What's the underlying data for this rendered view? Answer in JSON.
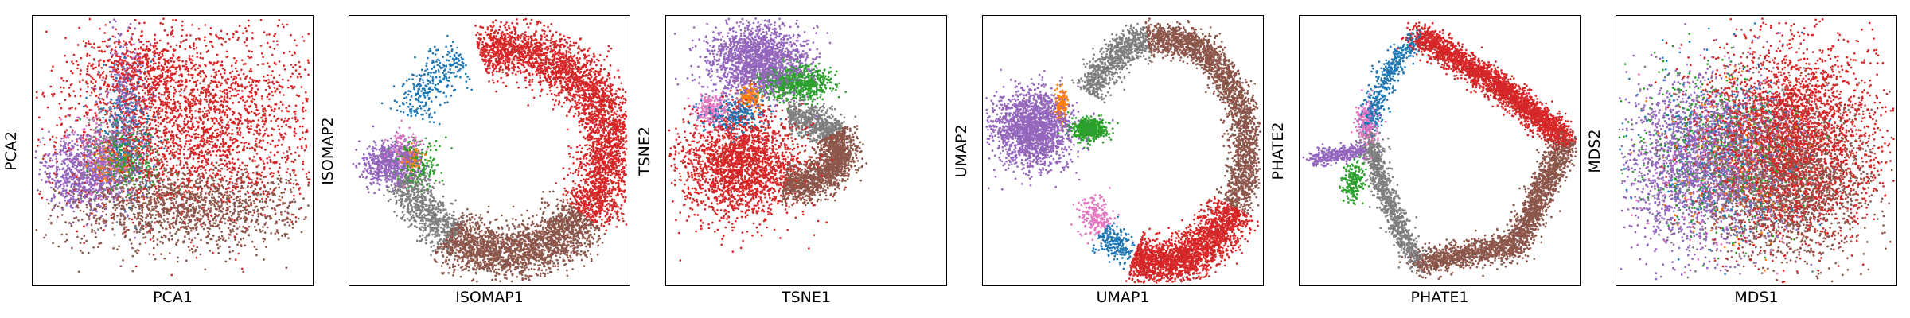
{
  "figure": {
    "palette": {
      "purple": "#9467bd",
      "red": "#d62728",
      "brown": "#8c564b",
      "gray": "#7f7f7f",
      "green": "#2ca02c",
      "blue": "#1f77b4",
      "orange": "#ff7f0e",
      "pink": "#e377c2"
    },
    "marker": "dot"
  },
  "chart_data": [
    {
      "type": "scatter",
      "title": "",
      "xlabel": "PCA1",
      "ylabel": "PCA2",
      "xticks": [],
      "yticks": [],
      "grid": false,
      "legend": "none",
      "clusters": [
        {
          "color": "#d62728",
          "count": 2600,
          "center": [
            0.58,
            0.4
          ],
          "spread": [
            0.23,
            0.17
          ],
          "shape": "blob"
        },
        {
          "color": "#d62728",
          "count": 500,
          "center": [
            0.38,
            0.2
          ],
          "spread": [
            0.1,
            0.07
          ],
          "shape": "blob"
        },
        {
          "color": "#8c564b",
          "count": 1500,
          "center": [
            0.56,
            0.71
          ],
          "spread": [
            0.22,
            0.08
          ],
          "shape": "blob"
        },
        {
          "color": "#9467bd",
          "count": 900,
          "center": [
            0.19,
            0.58
          ],
          "spread": [
            0.08,
            0.07
          ],
          "shape": "blob"
        },
        {
          "color": "#9467bd",
          "count": 300,
          "center": [
            0.33,
            0.32
          ],
          "spread": [
            0.04,
            0.14
          ],
          "shape": "blob"
        },
        {
          "color": "#2ca02c",
          "count": 250,
          "center": [
            0.33,
            0.54
          ],
          "spread": [
            0.06,
            0.06
          ],
          "shape": "blob"
        },
        {
          "color": "#7f7f7f",
          "count": 350,
          "center": [
            0.3,
            0.5
          ],
          "spread": [
            0.07,
            0.1
          ],
          "shape": "blob"
        },
        {
          "color": "#1f77b4",
          "count": 250,
          "center": [
            0.33,
            0.42
          ],
          "spread": [
            0.05,
            0.12
          ],
          "shape": "blob"
        },
        {
          "color": "#ff7f0e",
          "count": 100,
          "center": [
            0.28,
            0.55
          ],
          "spread": [
            0.04,
            0.04
          ],
          "shape": "blob"
        },
        {
          "color": "#e377c2",
          "count": 120,
          "center": [
            0.24,
            0.5
          ],
          "spread": [
            0.05,
            0.07
          ],
          "shape": "blob"
        }
      ]
    },
    {
      "type": "scatter",
      "title": "",
      "xlabel": "ISOMAP1",
      "ylabel": "ISOMAP2",
      "xticks": [],
      "yticks": [],
      "grid": false,
      "legend": "none",
      "clusters": [
        {
          "color": "#d62728",
          "count": 3300,
          "center": [
            0.56,
            0.5
          ],
          "radius": [
            0.37,
            0.38
          ],
          "arc": [
            -105,
            40
          ],
          "width": 0.05,
          "shape": "ring"
        },
        {
          "color": "#8c564b",
          "count": 2200,
          "center": [
            0.56,
            0.5
          ],
          "radius": [
            0.37,
            0.38
          ],
          "arc": [
            40,
            125
          ],
          "width": 0.05,
          "shape": "ring"
        },
        {
          "color": "#7f7f7f",
          "count": 700,
          "center": [
            0.56,
            0.5
          ],
          "radius": [
            0.37,
            0.38
          ],
          "arc": [
            120,
            165
          ],
          "width": 0.04,
          "shape": "ring"
        },
        {
          "color": "#9467bd",
          "count": 700,
          "center": [
            0.15,
            0.55
          ],
          "spread": [
            0.05,
            0.04
          ],
          "shape": "blob"
        },
        {
          "color": "#2ca02c",
          "count": 200,
          "center": [
            0.24,
            0.55
          ],
          "spread": [
            0.04,
            0.04
          ],
          "shape": "blob"
        },
        {
          "color": "#ff7f0e",
          "count": 100,
          "center": [
            0.22,
            0.53
          ],
          "spread": [
            0.02,
            0.02
          ],
          "shape": "blob"
        },
        {
          "color": "#1f77b4",
          "count": 300,
          "center": [
            0.56,
            0.5
          ],
          "radius": [
            0.37,
            0.38
          ],
          "arc": [
            -160,
            -115
          ],
          "width": 0.04,
          "shape": "ring"
        },
        {
          "color": "#e377c2",
          "count": 100,
          "center": [
            0.2,
            0.5
          ],
          "spread": [
            0.03,
            0.04
          ],
          "shape": "blob"
        }
      ]
    },
    {
      "type": "scatter",
      "title": "",
      "xlabel": "TSNE1",
      "ylabel": "TSNE2",
      "xticks": [],
      "yticks": [],
      "grid": false,
      "legend": "none",
      "clusters": [
        {
          "color": "#9467bd",
          "count": 1800,
          "center": [
            0.33,
            0.17
          ],
          "spread": [
            0.09,
            0.07
          ],
          "shape": "blob"
        },
        {
          "color": "#2ca02c",
          "count": 700,
          "center": [
            0.47,
            0.25
          ],
          "spread": [
            0.06,
            0.03
          ],
          "shape": "blob"
        },
        {
          "color": "#d62728",
          "count": 2200,
          "center": [
            0.27,
            0.55
          ],
          "spread": [
            0.11,
            0.1
          ],
          "shape": "blob"
        },
        {
          "color": "#8c564b",
          "count": 1500,
          "center": [
            0.45,
            0.5
          ],
          "radius": [
            0.17,
            0.13
          ],
          "arc": [
            -30,
            100
          ],
          "width": 0.035,
          "shape": "ring"
        },
        {
          "color": "#7f7f7f",
          "count": 600,
          "center": [
            0.45,
            0.5
          ],
          "radius": [
            0.17,
            0.13
          ],
          "arc": [
            -95,
            -30
          ],
          "width": 0.03,
          "shape": "ring"
        },
        {
          "color": "#e377c2",
          "count": 200,
          "center": [
            0.16,
            0.35
          ],
          "spread": [
            0.03,
            0.03
          ],
          "shape": "blob"
        },
        {
          "color": "#ff7f0e",
          "count": 150,
          "center": [
            0.3,
            0.3
          ],
          "spread": [
            0.02,
            0.02
          ],
          "shape": "blob"
        },
        {
          "color": "#1f77b4",
          "count": 250,
          "center": [
            0.24,
            0.37
          ],
          "spread": [
            0.06,
            0.03
          ],
          "shape": "blob"
        }
      ]
    },
    {
      "type": "scatter",
      "title": "",
      "xlabel": "UMAP1",
      "ylabel": "UMAP2",
      "xticks": [],
      "yticks": [],
      "grid": false,
      "legend": "none",
      "clusters": [
        {
          "color": "#9467bd",
          "count": 1800,
          "center": [
            0.18,
            0.42
          ],
          "spread": [
            0.07,
            0.07
          ],
          "shape": "blob"
        },
        {
          "color": "#2ca02c",
          "count": 500,
          "center": [
            0.38,
            0.42
          ],
          "spread": [
            0.03,
            0.02
          ],
          "shape": "blob"
        },
        {
          "color": "#ff7f0e",
          "count": 150,
          "center": [
            0.28,
            0.33
          ],
          "spread": [
            0.01,
            0.03
          ],
          "shape": "blob"
        },
        {
          "color": "#7f7f7f",
          "count": 800,
          "center": [
            0.64,
            0.5
          ],
          "radius": [
            0.3,
            0.42
          ],
          "arc": [
            -150,
            -100
          ],
          "width": 0.03,
          "shape": "ring"
        },
        {
          "color": "#8c564b",
          "count": 2200,
          "center": [
            0.64,
            0.5
          ],
          "radius": [
            0.3,
            0.42
          ],
          "arc": [
            -100,
            30
          ],
          "width": 0.03,
          "shape": "ring"
        },
        {
          "color": "#d62728",
          "count": 2200,
          "center": [
            0.64,
            0.5
          ],
          "radius": [
            0.3,
            0.42
          ],
          "arc": [
            30,
            110
          ],
          "width": 0.04,
          "shape": "ring"
        },
        {
          "color": "#1f77b4",
          "count": 200,
          "center": [
            0.64,
            0.5
          ],
          "radius": [
            0.3,
            0.42
          ],
          "arc": [
            112,
            135
          ],
          "width": 0.03,
          "shape": "ring"
        },
        {
          "color": "#e377c2",
          "count": 200,
          "center": [
            0.64,
            0.5
          ],
          "radius": [
            0.3,
            0.42
          ],
          "arc": [
            135,
            155
          ],
          "width": 0.03,
          "shape": "ring"
        }
      ]
    },
    {
      "type": "scatter",
      "title": "",
      "xlabel": "PHATE1",
      "ylabel": "PHATE2",
      "xticks": [],
      "yticks": [],
      "grid": false,
      "legend": "none",
      "clusters": [
        {
          "color": "#d62728",
          "count": 2600,
          "path": [
            [
              0.42,
              0.07
            ],
            [
              0.7,
              0.25
            ],
            [
              0.95,
              0.46
            ]
          ],
          "width": 0.025,
          "shape": "path"
        },
        {
          "color": "#8c564b",
          "count": 2200,
          "path": [
            [
              0.95,
              0.46
            ],
            [
              0.78,
              0.85
            ],
            [
              0.42,
              0.92
            ]
          ],
          "width": 0.025,
          "shape": "path"
        },
        {
          "color": "#7f7f7f",
          "count": 1000,
          "path": [
            [
              0.42,
              0.92
            ],
            [
              0.3,
              0.65
            ],
            [
              0.25,
              0.45
            ]
          ],
          "width": 0.02,
          "shape": "path"
        },
        {
          "color": "#1f77b4",
          "count": 500,
          "path": [
            [
              0.24,
              0.42
            ],
            [
              0.32,
              0.2
            ],
            [
              0.42,
              0.07
            ]
          ],
          "width": 0.02,
          "shape": "path"
        },
        {
          "color": "#9467bd",
          "count": 350,
          "path": [
            [
              0.05,
              0.53
            ],
            [
              0.24,
              0.5
            ]
          ],
          "width": 0.015,
          "shape": "path"
        },
        {
          "color": "#2ca02c",
          "count": 200,
          "center": [
            0.19,
            0.61
          ],
          "spread": [
            0.02,
            0.04
          ],
          "shape": "blob"
        },
        {
          "color": "#e377c2",
          "count": 200,
          "center": [
            0.24,
            0.4
          ],
          "spread": [
            0.02,
            0.05
          ],
          "shape": "blob"
        }
      ]
    },
    {
      "type": "scatter",
      "title": "",
      "xlabel": "MDS1",
      "ylabel": "MDS2",
      "xticks": [],
      "yticks": [],
      "grid": false,
      "legend": "none",
      "clusters": [
        {
          "color": "#d62728",
          "count": 3200,
          "center": [
            0.62,
            0.45
          ],
          "spread": [
            0.16,
            0.18
          ],
          "shape": "blob"
        },
        {
          "color": "#8c564b",
          "count": 1800,
          "center": [
            0.64,
            0.62
          ],
          "spread": [
            0.14,
            0.14
          ],
          "shape": "blob"
        },
        {
          "color": "#9467bd",
          "count": 2000,
          "center": [
            0.3,
            0.55
          ],
          "spread": [
            0.14,
            0.16
          ],
          "shape": "blob"
        },
        {
          "color": "#7f7f7f",
          "count": 600,
          "center": [
            0.42,
            0.55
          ],
          "spread": [
            0.16,
            0.16
          ],
          "shape": "blob"
        },
        {
          "color": "#2ca02c",
          "count": 500,
          "center": [
            0.35,
            0.5
          ],
          "spread": [
            0.14,
            0.16
          ],
          "shape": "blob"
        },
        {
          "color": "#1f77b4",
          "count": 400,
          "center": [
            0.38,
            0.5
          ],
          "spread": [
            0.14,
            0.16
          ],
          "shape": "blob"
        },
        {
          "color": "#ff7f0e",
          "count": 150,
          "center": [
            0.4,
            0.55
          ],
          "spread": [
            0.14,
            0.16
          ],
          "shape": "blob"
        },
        {
          "color": "#e377c2",
          "count": 200,
          "center": [
            0.36,
            0.55
          ],
          "spread": [
            0.14,
            0.16
          ],
          "shape": "blob"
        }
      ]
    }
  ]
}
